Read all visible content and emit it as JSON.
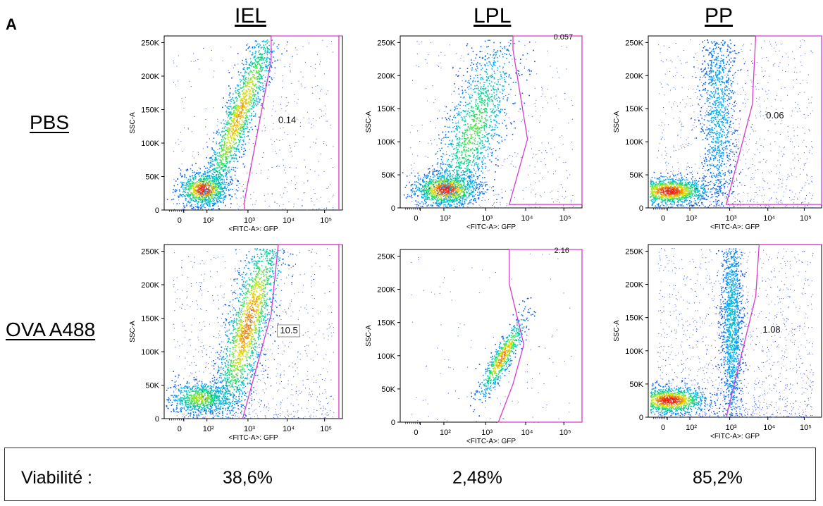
{
  "figure": {
    "panel_label": "A",
    "columns": [
      "IEL",
      "LPL",
      "PP"
    ],
    "rows": [
      "PBS",
      "OVA A488"
    ]
  },
  "chart_data": [
    {
      "type": "scatter",
      "group": "IEL",
      "condition": "PBS",
      "xlabel": "<FITC-A>: GFP",
      "ylabel": "SSC-A",
      "x_ticks": [
        "0",
        "10²",
        "10³",
        "10⁴",
        "10⁵"
      ],
      "y_ticks": [
        "0",
        "50K",
        "100K",
        "150K",
        "200K",
        "250K"
      ],
      "ylim": [
        0,
        260000
      ],
      "gate_value": "0.14"
    },
    {
      "type": "scatter",
      "group": "LPL",
      "condition": "PBS",
      "xlabel": "<FITC-A>: GFP",
      "ylabel": "SSC-A",
      "x_ticks": [
        "0",
        "10²",
        "10³",
        "10⁴",
        "10⁵"
      ],
      "y_ticks": [
        "0",
        "50K",
        "100K",
        "150K",
        "200K",
        "250K"
      ],
      "ylim": [
        0,
        260000
      ],
      "gate_value": "0.057"
    },
    {
      "type": "scatter",
      "group": "PP",
      "condition": "PBS",
      "xlabel": "<FITC-A>: GFP",
      "ylabel": "SSC-A",
      "x_ticks": [
        "0",
        "10²",
        "10³",
        "10⁴",
        "10⁵"
      ],
      "y_ticks": [
        "0",
        "50K",
        "100K",
        "150K",
        "200K",
        "250K"
      ],
      "ylim": [
        0,
        260000
      ],
      "gate_value": "0.06"
    },
    {
      "type": "scatter",
      "group": "IEL",
      "condition": "OVA A488",
      "xlabel": "<FITC-A>: GFP",
      "ylabel": "SSC-A",
      "x_ticks": [
        "0",
        "10²",
        "10³",
        "10⁴",
        "10⁵"
      ],
      "y_ticks": [
        "0",
        "50K",
        "100K",
        "150K",
        "200K",
        "250K"
      ],
      "ylim": [
        0,
        260000
      ],
      "gate_value": "10.5"
    },
    {
      "type": "scatter",
      "group": "LPL",
      "condition": "OVA A488",
      "xlabel": "<FITC-A>: GFP",
      "ylabel": "SSC-A",
      "x_ticks": [
        "0",
        "10²",
        "10³",
        "10⁴",
        "10⁵"
      ],
      "y_ticks": [
        "0",
        "50K",
        "100K",
        "150K",
        "200K",
        "250K"
      ],
      "ylim": [
        0,
        260000
      ],
      "gate_value": "2.16"
    },
    {
      "type": "scatter",
      "group": "PP",
      "condition": "OVA A488",
      "xlabel": "<FITC-A>: GFP",
      "ylabel": "SSC-A",
      "x_ticks": [
        "0",
        "10²",
        "10³",
        "10⁴",
        "10⁵"
      ],
      "y_ticks": [
        "0",
        "50K",
        "100K",
        "150K",
        "200K",
        "250K"
      ],
      "ylim": [
        0,
        260000
      ],
      "gate_value": "1.08"
    }
  ],
  "viability": {
    "label": "Viabilité :",
    "values": [
      "38,6%",
      "2,48%",
      "85,2%"
    ]
  },
  "colors": {
    "gate": "#d63bc9",
    "density_low": "#1a2bd6",
    "density_high": "#e8261a"
  }
}
